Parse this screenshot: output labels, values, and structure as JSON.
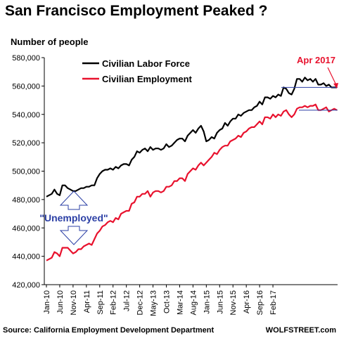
{
  "title": "San Francisco Employment Peaked ?",
  "source": "Source: California Employment Development Department",
  "brand": "WOLFSTREET.com",
  "colors": {
    "labor": "#000000",
    "employment": "#e8112d",
    "annotation_blue": "#2b3fa5",
    "annotation_red": "#e8112d"
  },
  "chart_data": {
    "type": "line",
    "title": "San Francisco Employment Peaked ?",
    "ylabel": "Number of people",
    "xlabel": "",
    "ylim": [
      420000,
      580000
    ],
    "yticks": [
      420000,
      440000,
      460000,
      480000,
      500000,
      520000,
      540000,
      560000,
      580000
    ],
    "ytick_labels": [
      "420,000",
      "440,000",
      "460,000",
      "480,000",
      "500,000",
      "520,000",
      "540,000",
      "560,000",
      "580,000"
    ],
    "x_tick_labels": [
      "Jan-10",
      "Jun-10",
      "Nov-10",
      "Apr-11",
      "Sep-11",
      "Feb-12",
      "Jul-12",
      "Dec-12",
      "May-13",
      "Oct-13",
      "Mar-14",
      "Aug-14",
      "Jan-15",
      "Jun-15",
      "Nov-15",
      "Apr-16",
      "Sep-16",
      "Feb-17"
    ],
    "x_start": "Jan-10",
    "x_end": "Apr-17",
    "legend_position": "top-left",
    "grid": false,
    "series": [
      {
        "name": "Civilian Labor Force",
        "color": "#000000",
        "values": [
          482000,
          483000,
          484000,
          487000,
          484000,
          483000,
          490000,
          490000,
          488000,
          487000,
          486000,
          486000,
          487000,
          488000,
          488000,
          489000,
          489000,
          490000,
          490000,
          495000,
          498000,
          500000,
          501000,
          501000,
          502000,
          501000,
          503000,
          502000,
          504000,
          505000,
          505000,
          504000,
          508000,
          510000,
          514000,
          513000,
          515000,
          516000,
          514000,
          517000,
          515000,
          516000,
          516000,
          515000,
          516000,
          519000,
          517000,
          518000,
          520000,
          522000,
          523000,
          523000,
          521000,
          525000,
          527000,
          529000,
          527000,
          530000,
          532000,
          528000,
          521000,
          522000,
          524000,
          523000,
          527000,
          529000,
          530000,
          534000,
          532000,
          535000,
          537000,
          537000,
          540000,
          539000,
          541000,
          542000,
          543000,
          543000,
          545000,
          546000,
          549000,
          547000,
          552000,
          552000,
          551000,
          553000,
          552000,
          554000,
          553000,
          559000,
          558000,
          555000,
          554000,
          558000,
          565000,
          565000,
          563000,
          566000,
          564000,
          565000,
          563000,
          565000,
          561000,
          561000,
          562000,
          560000,
          561000,
          559000,
          559000,
          559000
        ],
        "values_note_removed": true
      },
      {
        "name": "Civilian Employment",
        "color": "#e8112d",
        "values": [
          437000,
          438000,
          439000,
          443000,
          442000,
          440000,
          446000,
          446000,
          446000,
          444000,
          442000,
          443000,
          445000,
          445000,
          447000,
          448000,
          449000,
          448000,
          452000,
          456000,
          458000,
          461000,
          462000,
          464000,
          465000,
          464000,
          467000,
          466000,
          470000,
          471000,
          472000,
          472000,
          477000,
          478000,
          482000,
          482000,
          484000,
          484000,
          486000,
          482000,
          485000,
          486000,
          486000,
          485000,
          486000,
          489000,
          489000,
          490000,
          493000,
          493000,
          495000,
          495000,
          493000,
          498000,
          500000,
          502000,
          501000,
          504000,
          506000,
          504000,
          506000,
          508000,
          510000,
          513000,
          512000,
          515000,
          517000,
          518000,
          518000,
          521000,
          522000,
          523000,
          525000,
          524000,
          527000,
          528000,
          530000,
          531000,
          531000,
          533000,
          535000,
          533000,
          538000,
          538000,
          537000,
          540000,
          538000,
          540000,
          539000,
          542000,
          543000,
          540000,
          538000,
          540000,
          544000,
          545000,
          545000,
          546000,
          545000,
          546000,
          546000,
          547000,
          543000,
          543000,
          544000,
          545000,
          542000,
          543000,
          544000,
          543000
        ]
      }
    ],
    "annotations": [
      {
        "text": "Apr 2017",
        "color": "#e8112d"
      },
      {
        "text": "\"Unemployed\"",
        "color": "#2b3fa5"
      }
    ]
  }
}
